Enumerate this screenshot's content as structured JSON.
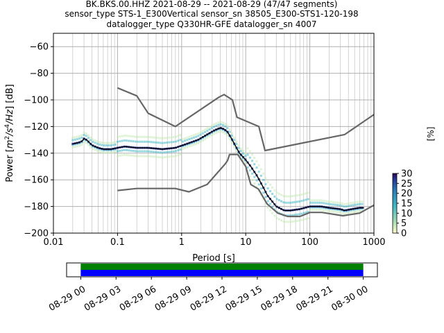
{
  "header": {
    "title_lines": [
      "BK.BKS.00.HHZ   2021-08-29 -- 2021-08-29  (47/47 segments)",
      "sensor_type STS-1_E300Vertical sensor_sn 38505_E300-STS1-120-198",
      "datalogger_type Q330HR-GFE datalogger_sn 4007"
    ]
  },
  "chart_data": [
    {
      "type": "line",
      "title": "",
      "xlabel": "Period [s]",
      "ylabel_parts": [
        "Power [",
        "m",
        "2",
        "/s",
        "4",
        "/Hz",
        "] [dB]"
      ],
      "xscale": "log",
      "xlim": [
        0.01,
        1000
      ],
      "ylim": [
        -200,
        -50
      ],
      "x_ticks": [
        0.01,
        0.1,
        1,
        10,
        100,
        1000
      ],
      "x_tick_labels": [
        "0.01",
        "0.1",
        "1",
        "10",
        "100",
        "1000"
      ],
      "y_ticks": [
        -200,
        -180,
        -160,
        -140,
        -120,
        -100,
        -80,
        -60
      ],
      "y_tick_labels": [
        "−200",
        "−180",
        "−160",
        "−140",
        "−120",
        "−100",
        "−80",
        "−60"
      ],
      "grid": true,
      "series": [
        {
          "color": "#666666",
          "x": [
            0.1,
            0.2,
            0.3,
            0.8,
            3.8,
            4.6,
            6.2,
            7.3,
            16,
            20,
            350,
            1000
          ],
          "y": [
            -91,
            -97,
            -110,
            -120,
            -98,
            -96,
            -100,
            -113,
            -120,
            -138,
            -126,
            -111
          ]
        },
        {
          "color": "#666666",
          "x": [
            0.1,
            0.2,
            0.8,
            1.3,
            2.5,
            4.8,
            5.2,
            5.6,
            7.5,
            10,
            12,
            15.8,
            21.5,
            31.6,
            45,
            70,
            101,
            154,
            328,
            600,
            1000
          ],
          "y": [
            -168,
            -166.5,
            -166.5,
            -169,
            -163.5,
            -148,
            -145.5,
            -141,
            -141,
            -150,
            -163.5,
            -167,
            -178,
            -185,
            -187.5,
            -187.5,
            -184.5,
            -184.5,
            -187,
            -185,
            -179
          ]
        },
        {
          "color": "#000000",
          "x": [
            0.02,
            0.025,
            0.028,
            0.03,
            0.033,
            0.04,
            0.05,
            0.06,
            0.08,
            0.1,
            0.13,
            0.2,
            0.3,
            0.5,
            0.8,
            1.2,
            1.8,
            2.5,
            3.2,
            4,
            4.6,
            5.2,
            6,
            7,
            8,
            10,
            12,
            15,
            18,
            22,
            30,
            40,
            50,
            70,
            100,
            150,
            200,
            300,
            350,
            450,
            600,
            700
          ],
          "y": [
            -133,
            -132,
            -131,
            -129,
            -130,
            -134,
            -136,
            -137,
            -137,
            -136,
            -135,
            -136,
            -136,
            -137,
            -136,
            -133,
            -130,
            -126,
            -123,
            -121,
            -122,
            -124,
            -129,
            -135,
            -140,
            -145,
            -150,
            -157,
            -164,
            -172,
            -180,
            -183,
            -183,
            -182,
            -180,
            -180,
            -181,
            -182,
            -183,
            -182,
            -181,
            -181
          ]
        }
      ],
      "colorbar": {
        "label": "[%]",
        "ticks": [
          0,
          5,
          10,
          15,
          20,
          25,
          30
        ],
        "tick_labels": [
          "0",
          "5",
          "10",
          "15",
          "20",
          "25",
          "30"
        ],
        "range": [
          0,
          30
        ]
      }
    },
    {
      "type": "bar",
      "description_free": true,
      "x_tick_labels": [
        "08-29 00",
        "08-29 03",
        "08-29 06",
        "08-29 09",
        "08-29 12",
        "08-29 15",
        "08-29 18",
        "08-29 21",
        "08-30 00"
      ],
      "x_hours": [
        0,
        3,
        6,
        9,
        12,
        15,
        18,
        21,
        24
      ],
      "xlim_hours": [
        -1.2,
        25.2
      ],
      "bars": [
        {
          "color": "#008000",
          "start_hours": 0,
          "end_hours": 24
        },
        {
          "color": "#0000ff",
          "start_hours": 0,
          "end_hours": 24
        }
      ]
    }
  ]
}
